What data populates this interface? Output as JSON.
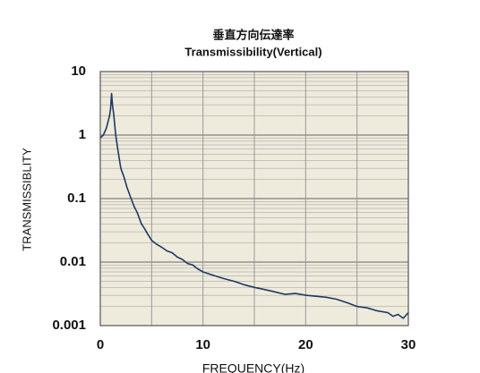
{
  "chart_data": {
    "type": "line",
    "title": "垂直方向伝達率",
    "subtitle": "Transmissibility(Vertical)",
    "x_label": "FREQUENCY(Hz)",
    "y_label": "TRANSMISSIBLITY",
    "log_y": true,
    "grid": true,
    "xlim": [
      0,
      30
    ],
    "xticks": [
      0,
      {
        "value": 5,
        "label": null
      },
      10,
      {
        "value": 15,
        "label": null
      },
      20,
      {
        "value": 25,
        "label": null
      },
      30
    ],
    "ylim": [
      0.001,
      10
    ],
    "yticks": [
      0.001,
      0.01,
      0.1,
      1,
      10
    ],
    "series": [
      {
        "color": "#1f3864",
        "x": [
          0,
          0.3,
          0.6,
          0.9,
          1.0,
          1.1,
          1.2,
          1.3,
          1.5,
          1.7,
          2.0,
          2.3,
          2.6,
          3.0,
          3.3,
          3.6,
          4.0,
          4.3,
          4.6,
          5.0,
          5.5,
          6.0,
          6.5,
          7.0,
          7.5,
          8.0,
          8.5,
          9.0,
          9.5,
          10,
          11,
          12,
          13,
          14,
          15,
          16,
          17,
          18,
          19,
          20,
          21,
          22,
          23,
          24,
          25,
          26,
          27,
          28,
          28.5,
          29,
          29.5,
          30
        ],
        "values": [
          0.9,
          1.0,
          1.3,
          2.0,
          2.6,
          4.5,
          2.8,
          2.2,
          1.0,
          0.6,
          0.3,
          0.22,
          0.15,
          0.1,
          0.075,
          0.06,
          0.04,
          0.034,
          0.028,
          0.022,
          0.019,
          0.017,
          0.015,
          0.014,
          0.012,
          0.011,
          0.0095,
          0.009,
          0.0078,
          0.007,
          0.0062,
          0.0055,
          0.005,
          0.0044,
          0.004,
          0.0037,
          0.0034,
          0.0031,
          0.0032,
          0.003,
          0.0029,
          0.0028,
          0.0026,
          0.0023,
          0.002,
          0.0019,
          0.0017,
          0.0016,
          0.0014,
          0.0015,
          0.0013,
          0.0016
        ]
      }
    ]
  }
}
